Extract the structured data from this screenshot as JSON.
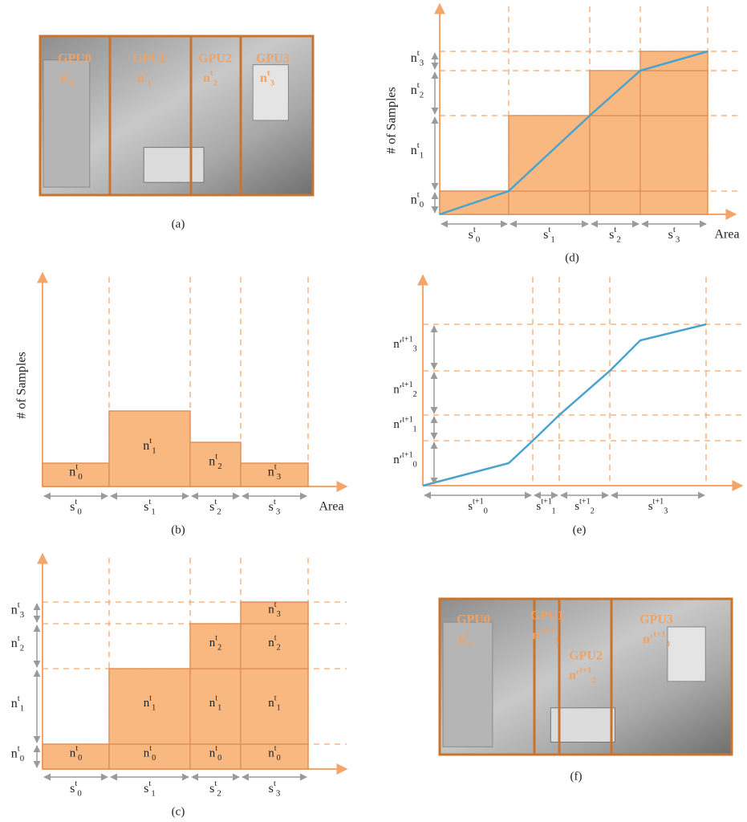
{
  "panel_a": {
    "caption": "(a)",
    "regions": [
      {
        "gpu": "GPU0",
        "n": {
          "base": "n",
          "sup": "t",
          "sub": "0"
        }
      },
      {
        "gpu": "GPU1",
        "n": {
          "base": "n",
          "sup": "t",
          "sub": "1"
        }
      },
      {
        "gpu": "GPU2",
        "n": {
          "base": "n",
          "sup": "t",
          "sub": "2"
        }
      },
      {
        "gpu": "GPU3",
        "n": {
          "base": "n",
          "sup": "t",
          "sub": "3"
        }
      }
    ]
  },
  "panel_b": {
    "caption": "(b)",
    "y_label": "# of Samples",
    "x_label": "Area",
    "bars": [
      {
        "base": "n",
        "sup": "t",
        "sub": "0"
      },
      {
        "base": "n",
        "sup": "t",
        "sub": "1"
      },
      {
        "base": "n",
        "sup": "t",
        "sub": "2"
      },
      {
        "base": "n",
        "sup": "t",
        "sub": "3"
      }
    ],
    "x_labels": [
      {
        "base": "s",
        "sup": "t",
        "sub": "0"
      },
      {
        "base": "s",
        "sup": "t",
        "sub": "1"
      },
      {
        "base": "s",
        "sup": "t",
        "sub": "2"
      },
      {
        "base": "s",
        "sup": "t",
        "sub": "3"
      }
    ]
  },
  "panel_c": {
    "caption": "(c)",
    "cells": [
      [
        {
          "base": "n",
          "sup": "t",
          "sub": "0"
        }
      ],
      [
        {
          "base": "n",
          "sup": "t",
          "sub": "0"
        },
        {
          "base": "n",
          "sup": "t",
          "sub": "1"
        }
      ],
      [
        {
          "base": "n",
          "sup": "t",
          "sub": "0"
        },
        {
          "base": "n",
          "sup": "t",
          "sub": "1"
        },
        {
          "base": "n",
          "sup": "t",
          "sub": "2"
        }
      ],
      [
        {
          "base": "n",
          "sup": "t",
          "sub": "0"
        },
        {
          "base": "n",
          "sup": "t",
          "sub": "1"
        },
        {
          "base": "n",
          "sup": "t",
          "sub": "2"
        },
        {
          "base": "n",
          "sup": "t",
          "sub": "3"
        }
      ]
    ],
    "y_labels": [
      {
        "base": "n",
        "sup": "t",
        "sub": "0"
      },
      {
        "base": "n",
        "sup": "t",
        "sub": "1"
      },
      {
        "base": "n",
        "sup": "t",
        "sub": "2"
      },
      {
        "base": "n",
        "sup": "t",
        "sub": "3"
      }
    ],
    "x_labels": [
      {
        "base": "s",
        "sup": "t",
        "sub": "0"
      },
      {
        "base": "s",
        "sup": "t",
        "sub": "1"
      },
      {
        "base": "s",
        "sup": "t",
        "sub": "2"
      },
      {
        "base": "s",
        "sup": "t",
        "sub": "3"
      }
    ]
  },
  "panel_d": {
    "caption": "(d)",
    "y_label": "# of Samples",
    "x_label": "Area",
    "y_labels": [
      {
        "base": "n",
        "sup": "t",
        "sub": "0"
      },
      {
        "base": "n",
        "sup": "t",
        "sub": "1"
      },
      {
        "base": "n",
        "sup": "t",
        "sub": "2"
      },
      {
        "base": "n",
        "sup": "t",
        "sub": "3"
      }
    ],
    "x_labels": [
      {
        "base": "s",
        "sup": "t",
        "sub": "0"
      },
      {
        "base": "s",
        "sup": "t",
        "sub": "1"
      },
      {
        "base": "s",
        "sup": "t",
        "sub": "2"
      },
      {
        "base": "s",
        "sup": "t",
        "sub": "3"
      }
    ]
  },
  "panel_e": {
    "caption": "(e)",
    "y_labels": [
      {
        "base": "n′",
        "sup": "t+1",
        "sub": "0"
      },
      {
        "base": "n′",
        "sup": "t+1",
        "sub": "1"
      },
      {
        "base": "n′",
        "sup": "t+1",
        "sub": "2"
      },
      {
        "base": "n′",
        "sup": "t+1",
        "sub": "3"
      }
    ],
    "x_labels": [
      {
        "base": "s",
        "sup": "t+1",
        "sub": "0"
      },
      {
        "base": "s",
        "sup": "t+1",
        "sub": "1"
      },
      {
        "base": "s",
        "sup": "t+1",
        "sub": "2"
      },
      {
        "base": "s",
        "sup": "t+1",
        "sub": "3"
      }
    ]
  },
  "panel_f": {
    "caption": "(f)",
    "regions": [
      {
        "gpu": "GPU0",
        "n": {
          "base": "n",
          "sup": "t",
          "sub": "0"
        }
      },
      {
        "gpu": "GPU1",
        "n": {
          "base": "n′",
          "sup": "t+1",
          "sub": "1"
        }
      },
      {
        "gpu": "GPU2",
        "n": {
          "base": "n′",
          "sup": "t+1",
          "sub": "2"
        }
      },
      {
        "gpu": "GPU3",
        "n": {
          "base": "n′",
          "sup": "t+1",
          "sub": "3"
        }
      }
    ]
  }
}
